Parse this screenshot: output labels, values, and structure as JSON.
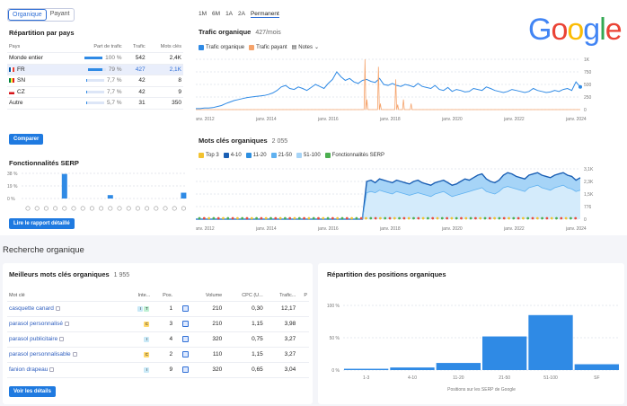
{
  "segment": [
    "Organique",
    "Payant"
  ],
  "countries": {
    "title": "Répartition par pays",
    "headers": [
      "Pays",
      "Part de trafic",
      "Trafic",
      "Mots clés"
    ],
    "rows": [
      {
        "name": "Monde entier",
        "share": "100 %",
        "share_frac": 1.0,
        "traffic": "542",
        "keywords": "2,4K",
        "flag": ""
      },
      {
        "name": "FR",
        "share": "79 %",
        "share_frac": 0.79,
        "traffic": "427",
        "keywords": "2,1K",
        "flag": "fr"
      },
      {
        "name": "SN",
        "share": "7,7 %",
        "share_frac": 0.077,
        "traffic": "42",
        "keywords": "8",
        "flag": "sn"
      },
      {
        "name": "CZ",
        "share": "7,7 %",
        "share_frac": 0.077,
        "traffic": "42",
        "keywords": "9",
        "flag": "cz"
      },
      {
        "name": "Autre",
        "share": "5,7 %",
        "share_frac": 0.057,
        "traffic": "31",
        "keywords": "350",
        "flag": ""
      }
    ],
    "button": "Comparer"
  },
  "serp_features": {
    "title": "Fonctionnalités SERP",
    "y_ticks": [
      "38 %",
      "19 %",
      "0 %"
    ],
    "bars": [
      0,
      0,
      0,
      0,
      0.72,
      0,
      0,
      0,
      0,
      0.1,
      0,
      0,
      0,
      0,
      0,
      0,
      0,
      0.17
    ],
    "button": "Lire le rapport détaillé"
  },
  "periods": [
    "1M",
    "6M",
    "1A",
    "2A",
    "Permanent"
  ],
  "traffic_chart": {
    "title": "Trafic organique",
    "subtitle": "427/mois",
    "legend": [
      "Trafic organique",
      "Trafic payant",
      "Notes"
    ],
    "y_ticks": [
      "1K",
      "750",
      "500",
      "250",
      "0"
    ],
    "x_ticks": [
      "janv. 2012",
      "janv. 2014",
      "janv. 2016",
      "janv. 2018",
      "janv. 2020",
      "janv. 2022",
      "janv. 2024"
    ],
    "colors": {
      "organic": "#2f8ae5",
      "paid": "#f5a36b"
    },
    "organic": [
      2,
      2,
      3,
      3,
      4,
      6,
      8,
      12,
      15,
      18,
      20,
      22,
      24,
      25,
      26,
      27,
      28,
      30,
      33,
      38,
      45,
      48,
      42,
      40,
      45,
      42,
      38,
      44,
      50,
      46,
      42,
      52,
      60,
      75,
      65,
      58,
      62,
      55,
      52,
      58,
      60,
      56,
      54,
      62,
      50,
      48,
      52,
      48,
      46,
      50,
      48,
      45,
      52,
      46,
      44,
      42,
      48,
      40,
      38,
      44,
      36,
      40,
      38,
      35,
      36,
      42,
      40,
      38,
      45,
      42,
      38,
      36,
      34,
      36,
      40,
      38,
      36,
      34,
      36,
      42,
      38,
      36,
      34,
      35,
      38,
      36,
      40,
      42,
      38,
      55,
      45
    ],
    "paid": [
      0,
      0,
      0,
      0,
      0,
      0,
      0,
      0,
      0,
      0,
      0,
      0,
      0,
      0,
      0,
      0,
      0,
      0,
      0,
      0,
      0,
      0,
      0,
      0,
      0,
      0,
      0,
      0,
      0,
      0,
      0,
      0,
      0,
      0,
      0,
      0,
      0,
      0,
      0,
      0,
      0,
      0,
      0,
      0,
      0,
      0,
      0,
      0,
      0,
      0,
      0,
      0,
      0,
      0,
      0,
      0,
      0,
      0,
      0,
      0,
      0,
      0,
      0,
      0,
      0,
      0,
      0,
      0,
      0,
      0,
      0,
      0,
      0,
      0,
      0,
      0,
      0,
      0,
      0,
      0,
      0,
      0,
      0,
      0,
      0,
      0,
      0,
      0,
      0,
      0,
      0
    ],
    "paid_spikes": [
      [
        0.44,
        1.0
      ],
      [
        0.445,
        0.2
      ],
      [
        0.475,
        0.85
      ],
      [
        0.48,
        0.12
      ],
      [
        0.52,
        0.6
      ],
      [
        0.525,
        0.1
      ],
      [
        0.54,
        0.2
      ],
      [
        0.56,
        0.12
      ]
    ],
    "ymax": 100
  },
  "keywords_chart": {
    "title": "Mots clés organiques",
    "subtitle": "2 055",
    "legend": [
      "Top 3",
      "4-10",
      "11-20",
      "21-50",
      "51-100",
      "Fonctionnalités SERP"
    ],
    "legend_colors": [
      "#f2c230",
      "#1a5fb4",
      "#2d8fe0",
      "#5fb1f0",
      "#a6d4f7",
      "#4caf50"
    ],
    "y_ticks": [
      "3,1K",
      "2,3K",
      "1,5K",
      "776",
      "0"
    ],
    "x_ticks": [
      "janv. 2012",
      "janv. 2014",
      "janv. 2016",
      "janv. 2018",
      "janv. 2020",
      "janv. 2022",
      "janv. 2024"
    ],
    "series_top": [
      0,
      0,
      0,
      0,
      0,
      0,
      0,
      0,
      0,
      0,
      0,
      0,
      0,
      0,
      0,
      0,
      0,
      0,
      0,
      0,
      0,
      0,
      0,
      0,
      0,
      0,
      0,
      0,
      0,
      0,
      0,
      0,
      0,
      0,
      0,
      0,
      0,
      0,
      0,
      0,
      60,
      62,
      58,
      64,
      62,
      60,
      58,
      62,
      60,
      58,
      56,
      60,
      62,
      58,
      56,
      54,
      58,
      60,
      62,
      58,
      54,
      56,
      60,
      64,
      62,
      66,
      70,
      72,
      64,
      60,
      58,
      62,
      70,
      74,
      72,
      68,
      66,
      64,
      70,
      72,
      74,
      70,
      68,
      66,
      70,
      72,
      74,
      70,
      68,
      62,
      66
    ],
    "series_mid": [
      0,
      0,
      0,
      0,
      0,
      0,
      0,
      0,
      0,
      0,
      0,
      0,
      0,
      0,
      0,
      0,
      0,
      0,
      0,
      0,
      0,
      0,
      0,
      0,
      0,
      0,
      0,
      0,
      0,
      0,
      0,
      0,
      0,
      0,
      0,
      0,
      0,
      0,
      0,
      0,
      42,
      44,
      42,
      46,
      44,
      42,
      40,
      44,
      42,
      40,
      38,
      40,
      42,
      40,
      38,
      36,
      40,
      42,
      44,
      40,
      36,
      38,
      40,
      42,
      44,
      46,
      48,
      50,
      44,
      42,
      40,
      44,
      50,
      52,
      50,
      48,
      46,
      44,
      50,
      52,
      54,
      50,
      48,
      46,
      50,
      52,
      54,
      50,
      48,
      44,
      46
    ],
    "ymax": 80
  },
  "section_title": "Recherche organique",
  "top_keywords": {
    "title": "Meilleurs mots clés organiques",
    "count": "1 955",
    "headers": [
      "Mot clé",
      "Inte...",
      "Pos.",
      "",
      "Volume",
      "CPC (U...",
      "Trafic...",
      "P"
    ],
    "rows": [
      {
        "kw": "casquette canard",
        "intent": [
          "I",
          "T"
        ],
        "intent_colors": [
          "#c9e9f7",
          "#bff0d4"
        ],
        "pos": "1",
        "volume": "210",
        "cpc": "0,30",
        "traffic": "12,17"
      },
      {
        "kw": "parasol personnalisé",
        "intent": [
          "C"
        ],
        "intent_colors": [
          "#ffd86b"
        ],
        "pos": "3",
        "volume": "210",
        "cpc": "1,15",
        "traffic": "3,98"
      },
      {
        "kw": "parasol publicitaire",
        "intent": [
          "I"
        ],
        "intent_colors": [
          "#c9e9f7"
        ],
        "pos": "4",
        "volume": "320",
        "cpc": "0,75",
        "traffic": "3,27"
      },
      {
        "kw": "parasol personnalisable",
        "intent": [
          "C"
        ],
        "intent_colors": [
          "#ffd86b"
        ],
        "pos": "2",
        "volume": "110",
        "cpc": "1,15",
        "traffic": "3,27"
      },
      {
        "kw": "fanion drapeau",
        "intent": [
          "I"
        ],
        "intent_colors": [
          "#c9e9f7"
        ],
        "pos": "9",
        "volume": "320",
        "cpc": "0,65",
        "traffic": "3,04"
      }
    ],
    "button": "Voir les détails"
  },
  "chart_data": {
    "type": "bar",
    "title": "Répartition des positions organiques",
    "categories": [
      "1-3",
      "4-10",
      "11-20",
      "21-50",
      "51-100",
      "SF"
    ],
    "values": [
      2,
      4,
      11,
      52,
      85,
      9
    ],
    "xlabel": "Positions sur les SERP de Google",
    "ylabel": "",
    "y_ticks": [
      "100 %",
      "50 %",
      "0 %"
    ],
    "ylim": [
      0,
      100
    ]
  },
  "logo": "Google"
}
